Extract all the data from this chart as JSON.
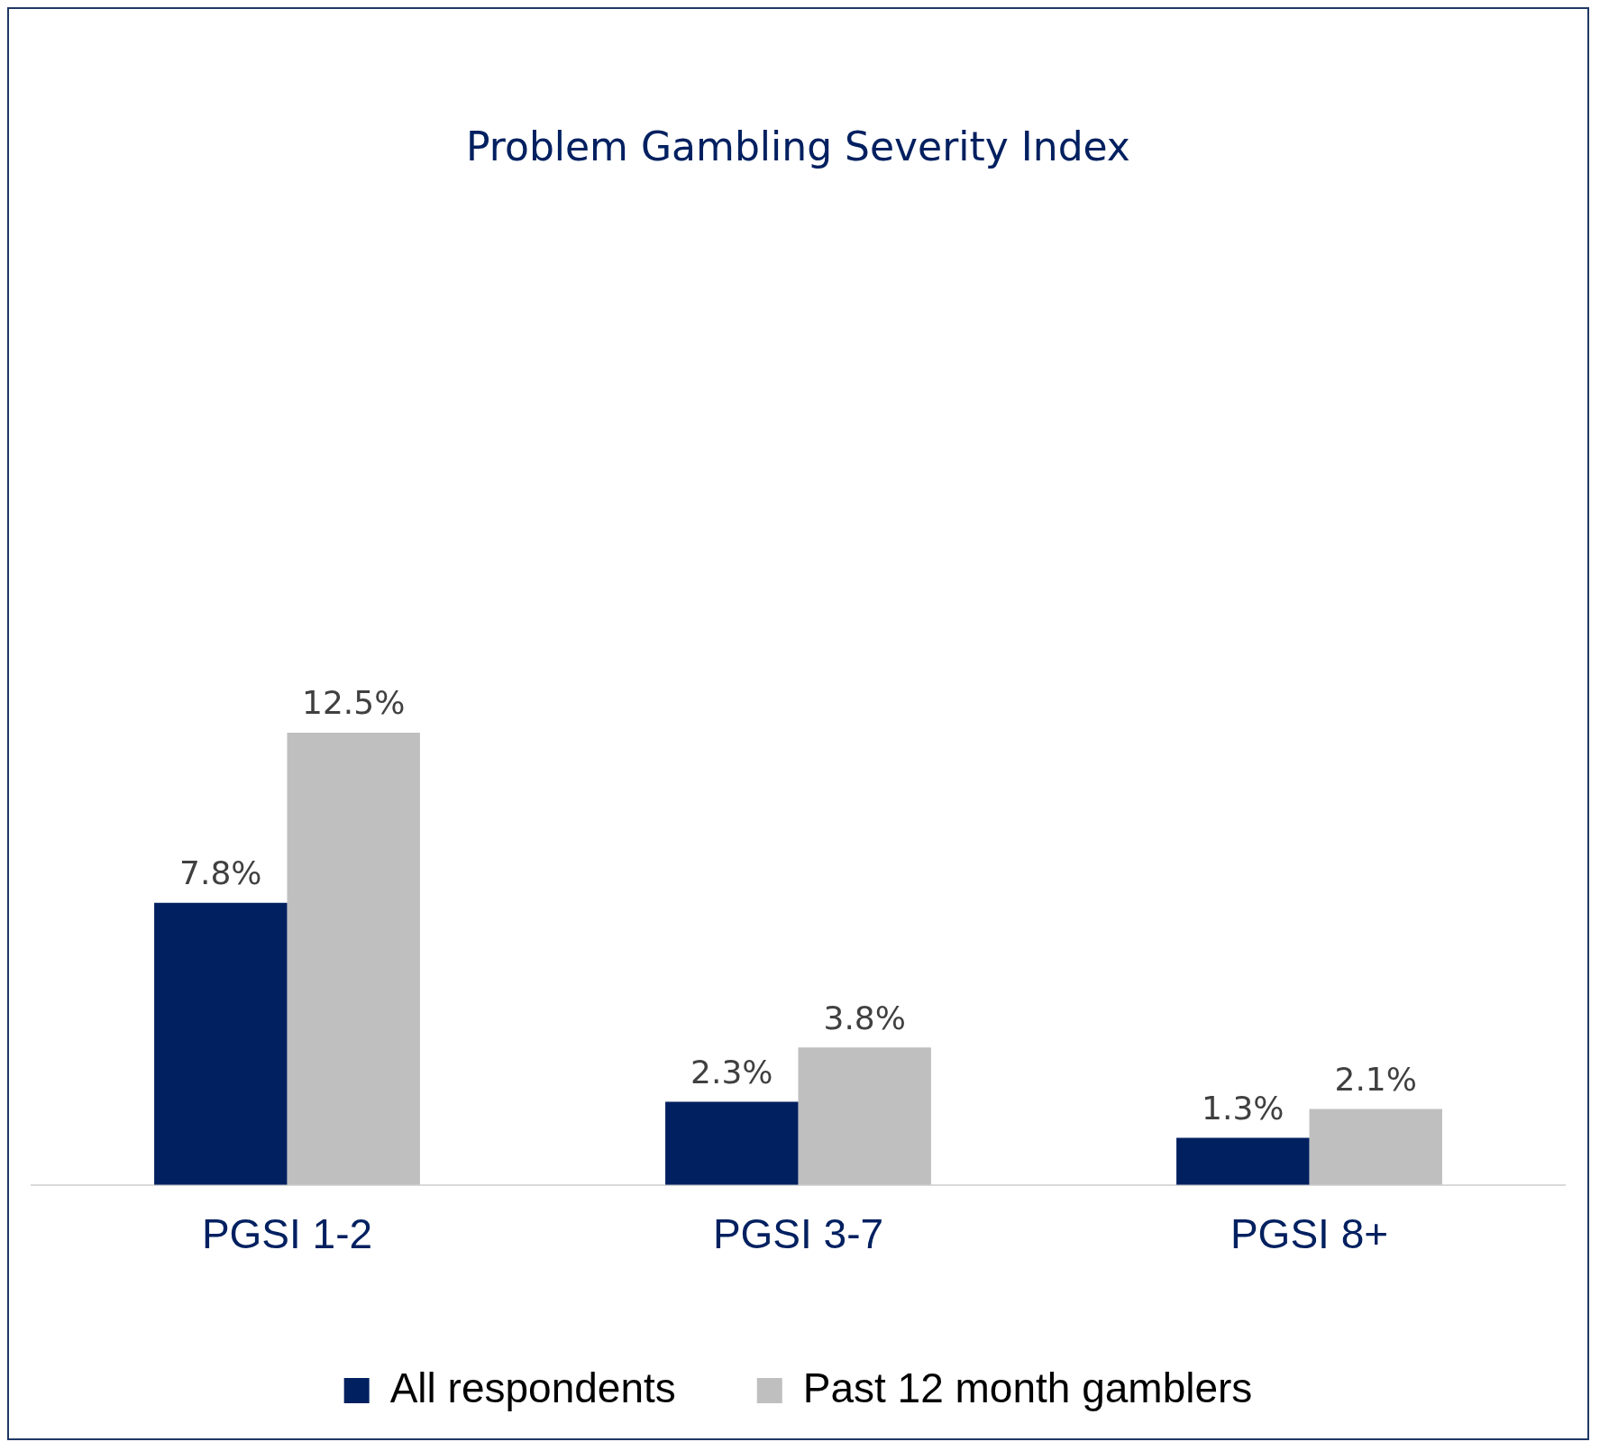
{
  "chart_data": {
    "type": "bar",
    "title": "Problem Gambling Severity Index",
    "categories": [
      "PGSI 1-2",
      "PGSI 3-7",
      "PGSI 8+"
    ],
    "series": [
      {
        "name": "All respondents",
        "color": "#002060",
        "values": [
          7.8,
          2.3,
          1.3
        ],
        "value_labels": [
          "7.8%",
          "2.3%",
          "1.3%"
        ]
      },
      {
        "name": "Past 12 month gamblers",
        "color": "#bfbfbf",
        "values": [
          12.5,
          3.8,
          2.1
        ],
        "value_labels": [
          "12.5%",
          "3.8%",
          "2.1%"
        ]
      }
    ],
    "legend": "bottom",
    "grid": false
  }
}
